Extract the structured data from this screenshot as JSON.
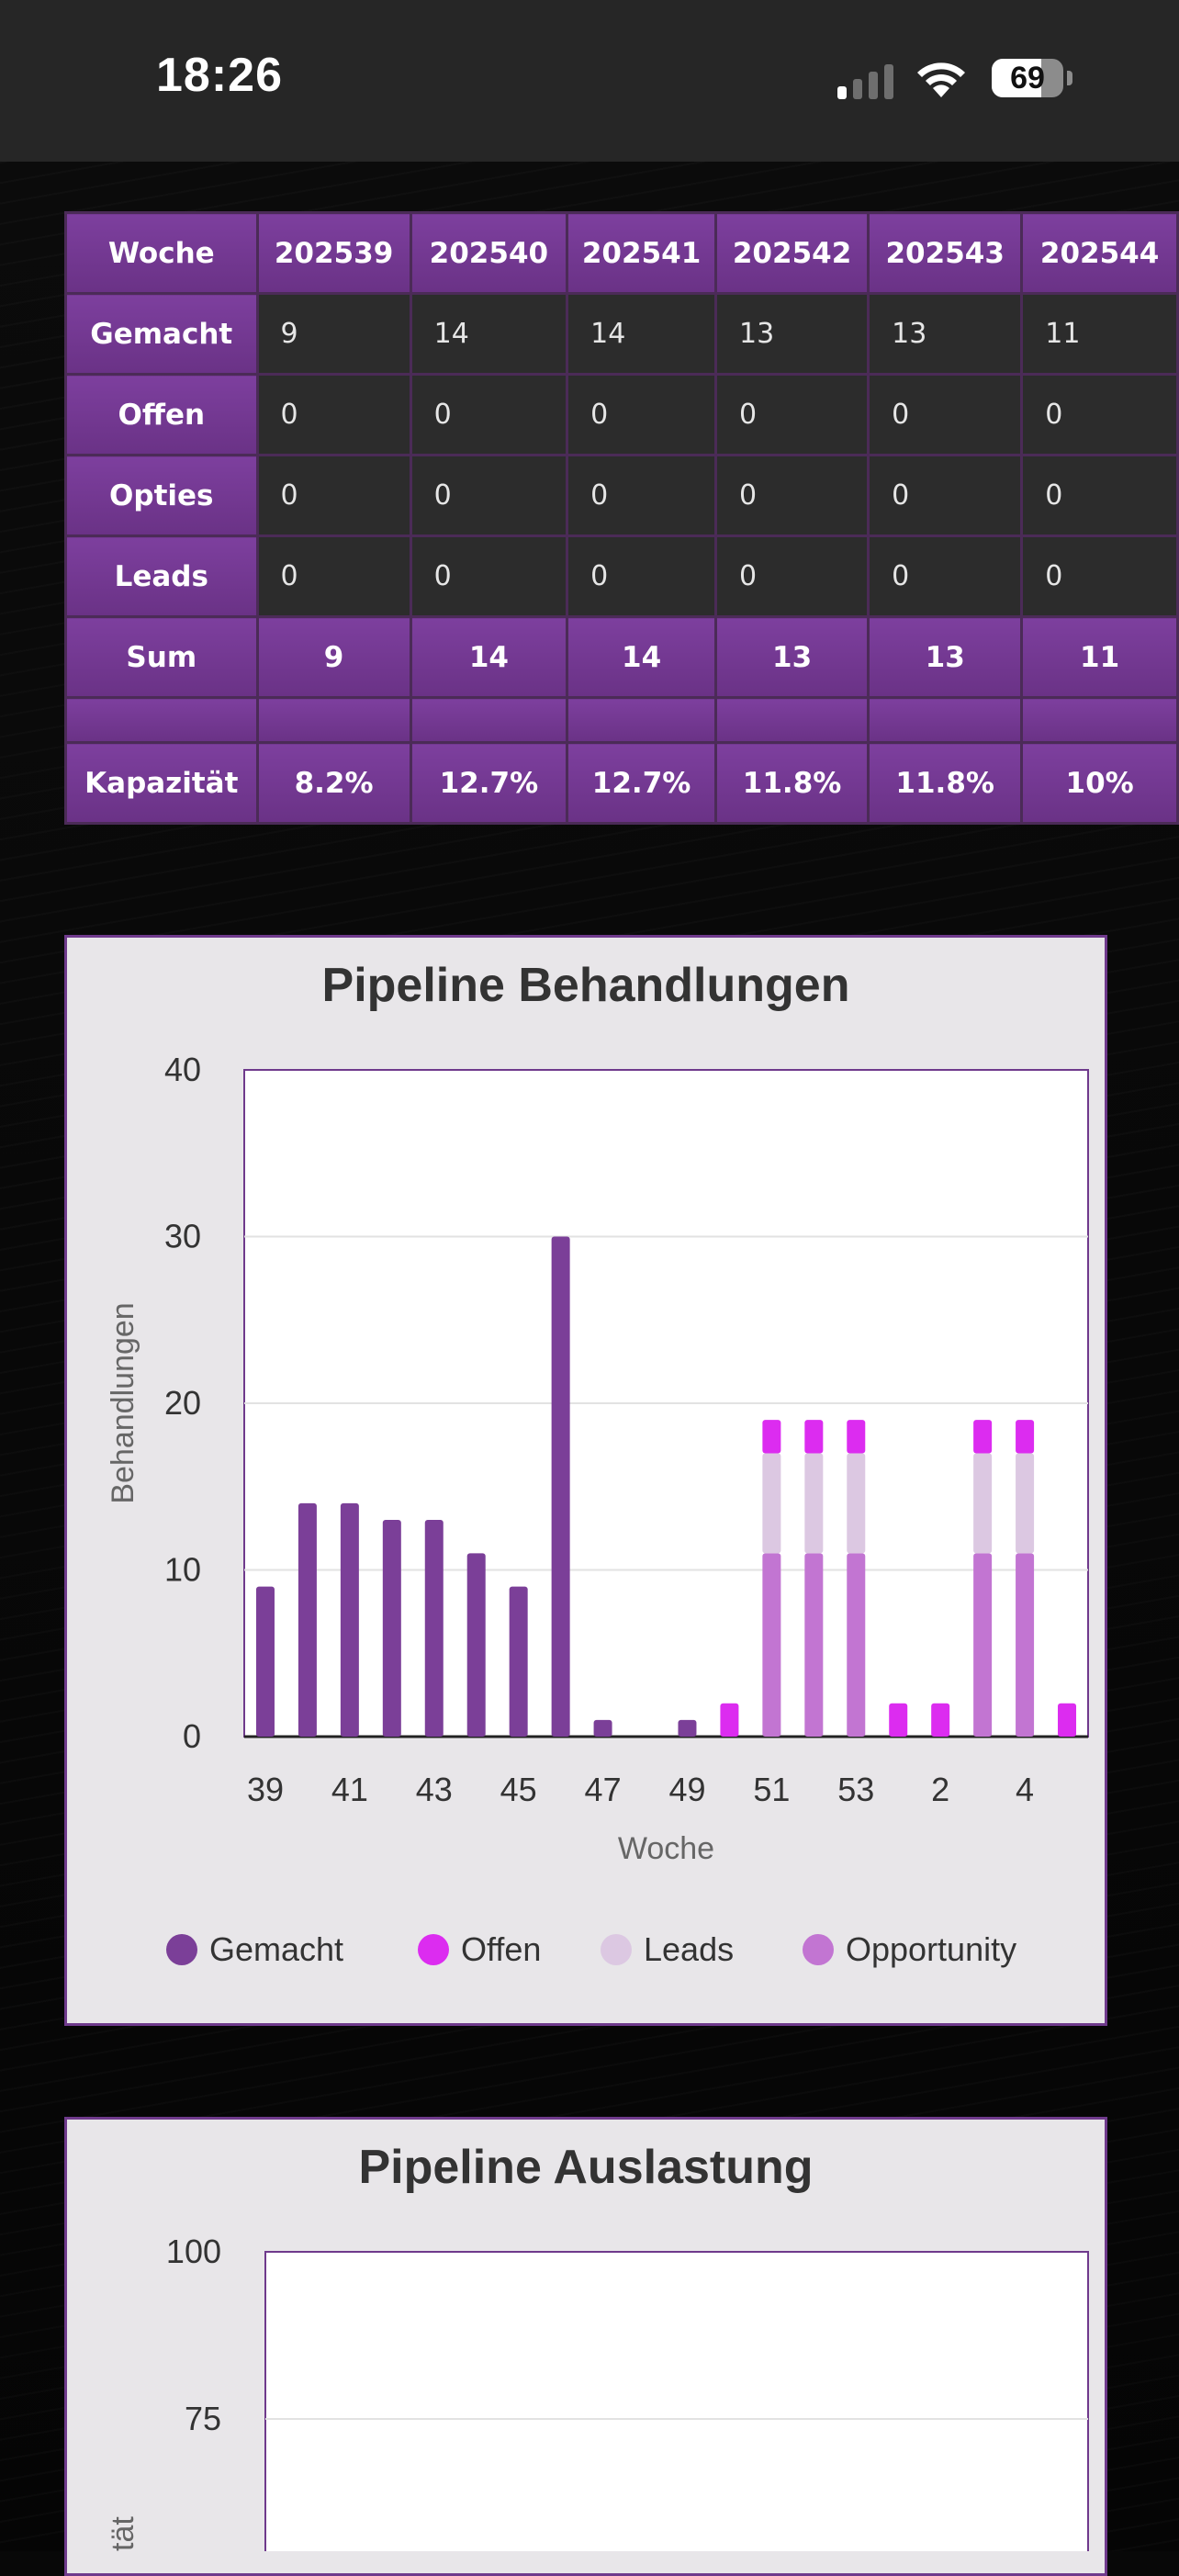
{
  "status_bar": {
    "time": "18:26",
    "battery": "69"
  },
  "table": {
    "header_label": "Woche",
    "weeks": [
      "202539",
      "202540",
      "202541",
      "202542",
      "202543",
      "202544"
    ],
    "rows": [
      {
        "label": "Gemacht",
        "values": [
          "9",
          "14",
          "14",
          "13",
          "13",
          "11"
        ]
      },
      {
        "label": "Offen",
        "values": [
          "0",
          "0",
          "0",
          "0",
          "0",
          "0"
        ]
      },
      {
        "label": "Opties",
        "values": [
          "0",
          "0",
          "0",
          "0",
          "0",
          "0"
        ]
      },
      {
        "label": "Leads",
        "values": [
          "0",
          "0",
          "0",
          "0",
          "0",
          "0"
        ]
      }
    ],
    "sum_label": "Sum",
    "sum_values": [
      "9",
      "14",
      "14",
      "13",
      "13",
      "11"
    ],
    "capacity_label": "Kapazität",
    "capacity_values": [
      "8.2%",
      "12.7%",
      "12.7%",
      "11.8%",
      "11.8%",
      "10%"
    ]
  },
  "chart_data": [
    {
      "type": "bar",
      "stacked": true,
      "title": "Pipeline Behandlungen",
      "xlabel": "Woche",
      "ylabel": "Behandlungen",
      "ylim": [
        0,
        40
      ],
      "yticks": [
        "0",
        "10",
        "20",
        "30",
        "40"
      ],
      "categories": [
        "39",
        "40",
        "41",
        "42",
        "43",
        "44",
        "45",
        "46",
        "47",
        "48",
        "49",
        "50",
        "51",
        "52",
        "53",
        "1",
        "2",
        "3",
        "4",
        "5"
      ],
      "xtick_labels": [
        "39",
        "41",
        "43",
        "45",
        "47",
        "49",
        "51",
        "53",
        "2",
        "4"
      ],
      "series": [
        {
          "name": "Gemacht",
          "color": "#7b3f98",
          "values": [
            9,
            14,
            14,
            13,
            13,
            11,
            9,
            30,
            1,
            0,
            1,
            0,
            0,
            0,
            0,
            0,
            0,
            0,
            0,
            0
          ]
        },
        {
          "name": "Opportunity",
          "color": "#c275d2",
          "values": [
            0,
            0,
            0,
            0,
            0,
            0,
            0,
            0,
            0,
            0,
            0,
            0,
            11,
            11,
            11,
            0,
            0,
            11,
            11,
            0
          ]
        },
        {
          "name": "Leads",
          "color": "#dcc8e2",
          "values": [
            0,
            0,
            0,
            0,
            0,
            0,
            0,
            0,
            0,
            0,
            0,
            0,
            6,
            6,
            6,
            0,
            0,
            6,
            6,
            0
          ]
        },
        {
          "name": "Offen",
          "color": "#dc2cf0",
          "values": [
            0,
            0,
            0,
            0,
            0,
            0,
            0,
            0,
            0,
            0,
            0,
            2,
            2,
            2,
            2,
            2,
            2,
            2,
            2,
            2
          ]
        }
      ],
      "legend": [
        {
          "name": "Gemacht",
          "color": "#7b3f98"
        },
        {
          "name": "Offen",
          "color": "#dc2cf0"
        },
        {
          "name": "Leads",
          "color": "#dcc8e2"
        },
        {
          "name": "Opportunity",
          "color": "#c275d2"
        }
      ]
    },
    {
      "type": "bar",
      "title": "Pipeline Auslastung",
      "ylabel": "Kapazität",
      "ylabel_visible": "tät",
      "yticks": [
        "75",
        "100"
      ]
    }
  ]
}
